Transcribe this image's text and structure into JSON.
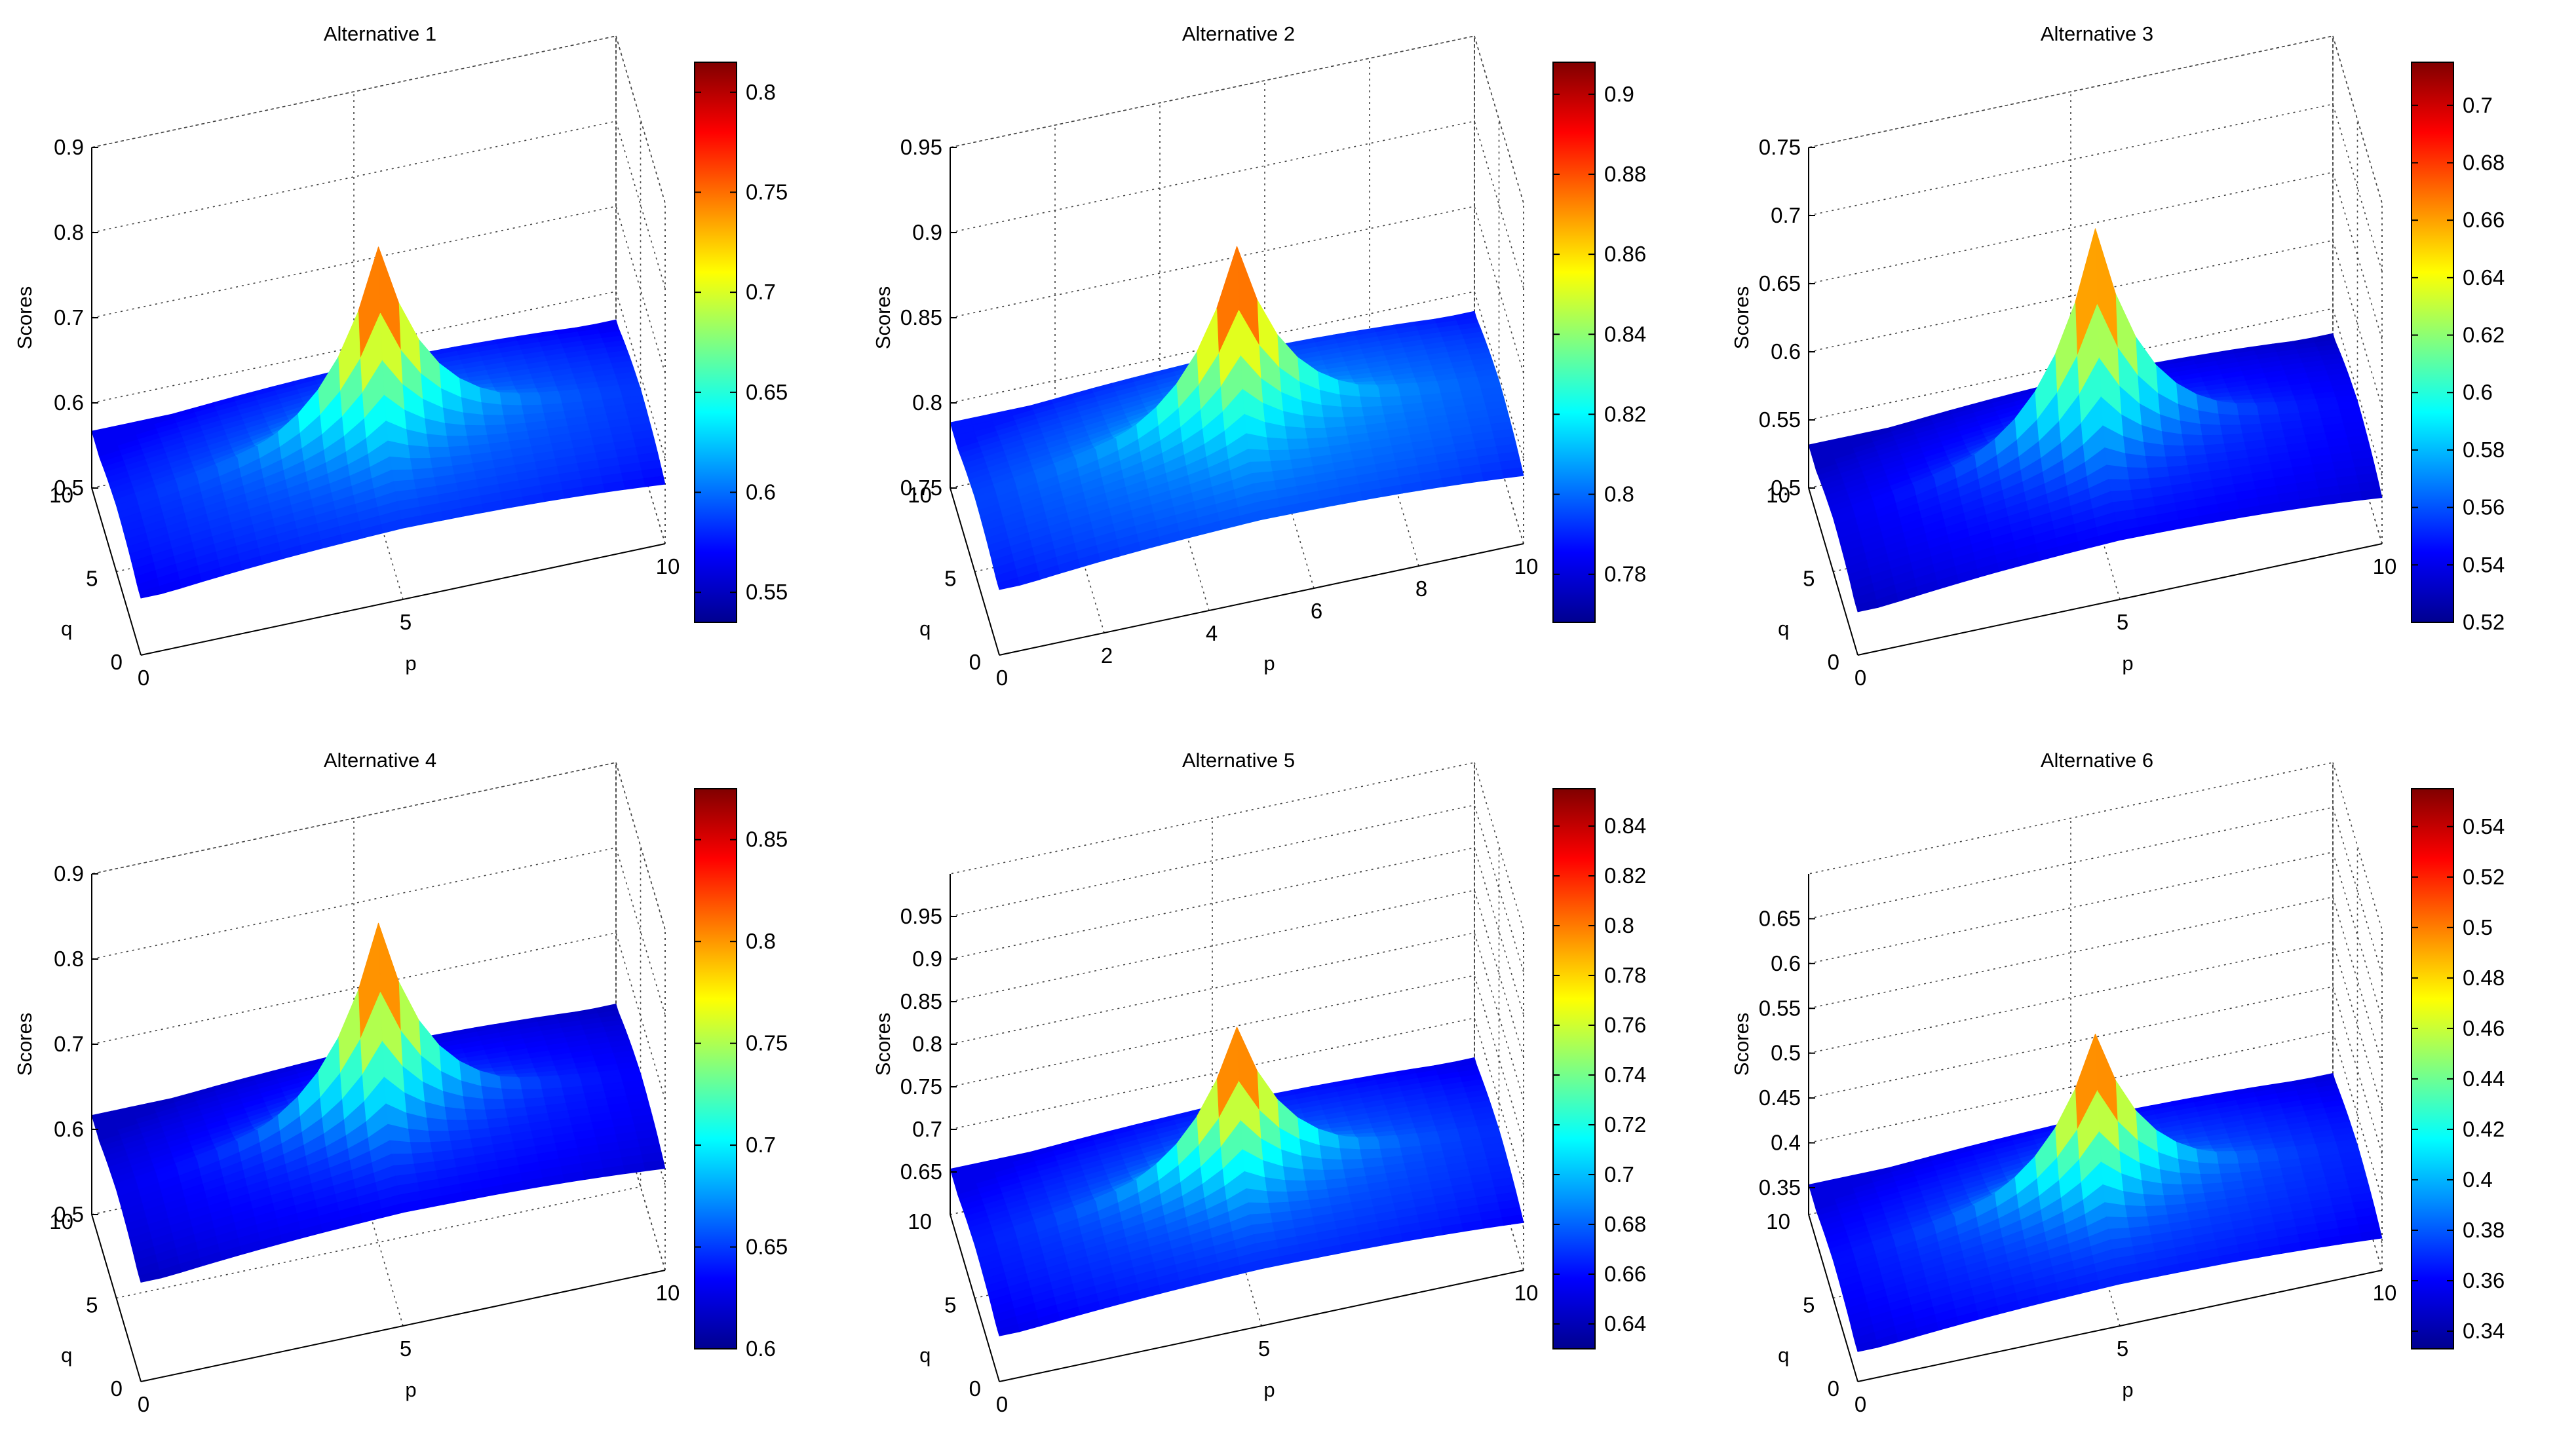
{
  "colormap": [
    "#00008f",
    "#0000ff",
    "#0080ff",
    "#00ffff",
    "#80ff80",
    "#ffff00",
    "#ff8000",
    "#ff0000",
    "#800000"
  ],
  "chart_data": [
    {
      "type": "surface",
      "title": "Alternative 1",
      "xlabel": "p",
      "ylabel": "q",
      "zlabel": "Scores",
      "xlim": [
        0,
        10
      ],
      "ylim": [
        0,
        10
      ],
      "zlim": [
        0.5,
        0.9
      ],
      "xticks": [
        "0",
        "5",
        "10"
      ],
      "yticks": [
        "0",
        "5",
        "10"
      ],
      "zticks": [
        "0.5",
        "0.6",
        "0.7",
        "0.8",
        "0.9"
      ],
      "colorbar_ticks": [
        "0.55",
        "0.6",
        "0.65",
        "0.7",
        "0.75",
        "0.8"
      ],
      "colorbar_range": [
        0.535,
        0.815
      ],
      "surface_peak": 0.8,
      "surface_floor": 0.55
    },
    {
      "type": "surface",
      "title": "Alternative 2",
      "xlabel": "p",
      "ylabel": "q",
      "zlabel": "Scores",
      "xlim": [
        0,
        10
      ],
      "ylim": [
        0,
        10
      ],
      "zlim": [
        0.75,
        0.95
      ],
      "xticks": [
        "0",
        "2",
        "4",
        "6",
        "8",
        "10"
      ],
      "yticks": [
        "0",
        "5",
        "10"
      ],
      "zticks": [
        "0.75",
        "0.8",
        "0.85",
        "0.9",
        "0.95"
      ],
      "colorbar_ticks": [
        "0.78",
        "0.8",
        "0.82",
        "0.84",
        "0.86",
        "0.88",
        "0.9"
      ],
      "colorbar_range": [
        0.768,
        0.908
      ],
      "surface_peak": 0.9,
      "surface_floor": 0.78
    },
    {
      "type": "surface",
      "title": "Alternative 3",
      "xlabel": "p",
      "ylabel": "q",
      "zlabel": "Scores",
      "xlim": [
        0,
        10
      ],
      "ylim": [
        0,
        10
      ],
      "zlim": [
        0.5,
        0.75
      ],
      "xticks": [
        "0",
        "5",
        "10"
      ],
      "yticks": [
        "0",
        "5",
        "10"
      ],
      "zticks": [
        "0.5",
        "0.55",
        "0.6",
        "0.65",
        "0.7",
        "0.75"
      ],
      "colorbar_ticks": [
        "0.52",
        "0.54",
        "0.56",
        "0.58",
        "0.6",
        "0.62",
        "0.64",
        "0.66",
        "0.68",
        "0.7"
      ],
      "colorbar_range": [
        0.52,
        0.715
      ],
      "surface_peak": 0.7,
      "surface_floor": 0.52
    },
    {
      "type": "surface",
      "title": "Alternative 4",
      "xlabel": "p",
      "ylabel": "q",
      "zlabel": "Scores",
      "xlim": [
        0,
        10
      ],
      "ylim": [
        0,
        10
      ],
      "zlim": [
        0.5,
        0.9
      ],
      "xticks": [
        "0",
        "5",
        "10"
      ],
      "yticks": [
        "0",
        "5",
        "10"
      ],
      "zticks": [
        "0.5",
        "0.6",
        "0.7",
        "0.8",
        "0.9"
      ],
      "colorbar_ticks": [
        "0.6",
        "0.65",
        "0.7",
        "0.75",
        "0.8",
        "0.85"
      ],
      "colorbar_range": [
        0.6,
        0.875
      ],
      "surface_peak": 0.86,
      "surface_floor": 0.6
    },
    {
      "type": "surface",
      "title": "Alternative 5",
      "xlabel": "p",
      "ylabel": "q",
      "zlabel": "Scores",
      "xlim": [
        0,
        10
      ],
      "ylim": [
        0,
        10
      ],
      "zlim": [
        0.6,
        1.0
      ],
      "xticks": [
        "0",
        "5",
        "10"
      ],
      "yticks": [
        "0",
        "5",
        "10"
      ],
      "zticks": [
        "0.65",
        "0.7",
        "0.75",
        "0.8",
        "0.85",
        "0.9",
        "0.95"
      ],
      "colorbar_ticks": [
        "0.64",
        "0.66",
        "0.68",
        "0.7",
        "0.72",
        "0.74",
        "0.76",
        "0.78",
        "0.8",
        "0.82",
        "0.84"
      ],
      "colorbar_range": [
        0.63,
        0.855
      ],
      "surface_peak": 0.84,
      "surface_floor": 0.64
    },
    {
      "type": "surface",
      "title": "Alternative 6",
      "xlabel": "p",
      "ylabel": "q",
      "zlabel": "Scores",
      "xlim": [
        0,
        10
      ],
      "ylim": [
        0,
        10
      ],
      "zlim": [
        0.32,
        0.7
      ],
      "xticks": [
        "0",
        "5",
        "10"
      ],
      "yticks": [
        "0",
        "5",
        "10"
      ],
      "zticks": [
        "0.35",
        "0.4",
        "0.45",
        "0.5",
        "0.55",
        "0.6",
        "0.65"
      ],
      "colorbar_ticks": [
        "0.34",
        "0.36",
        "0.38",
        "0.4",
        "0.42",
        "0.44",
        "0.46",
        "0.48",
        "0.5",
        "0.52",
        "0.54"
      ],
      "colorbar_range": [
        0.333,
        0.555
      ],
      "surface_peak": 0.54,
      "surface_floor": 0.34
    }
  ]
}
